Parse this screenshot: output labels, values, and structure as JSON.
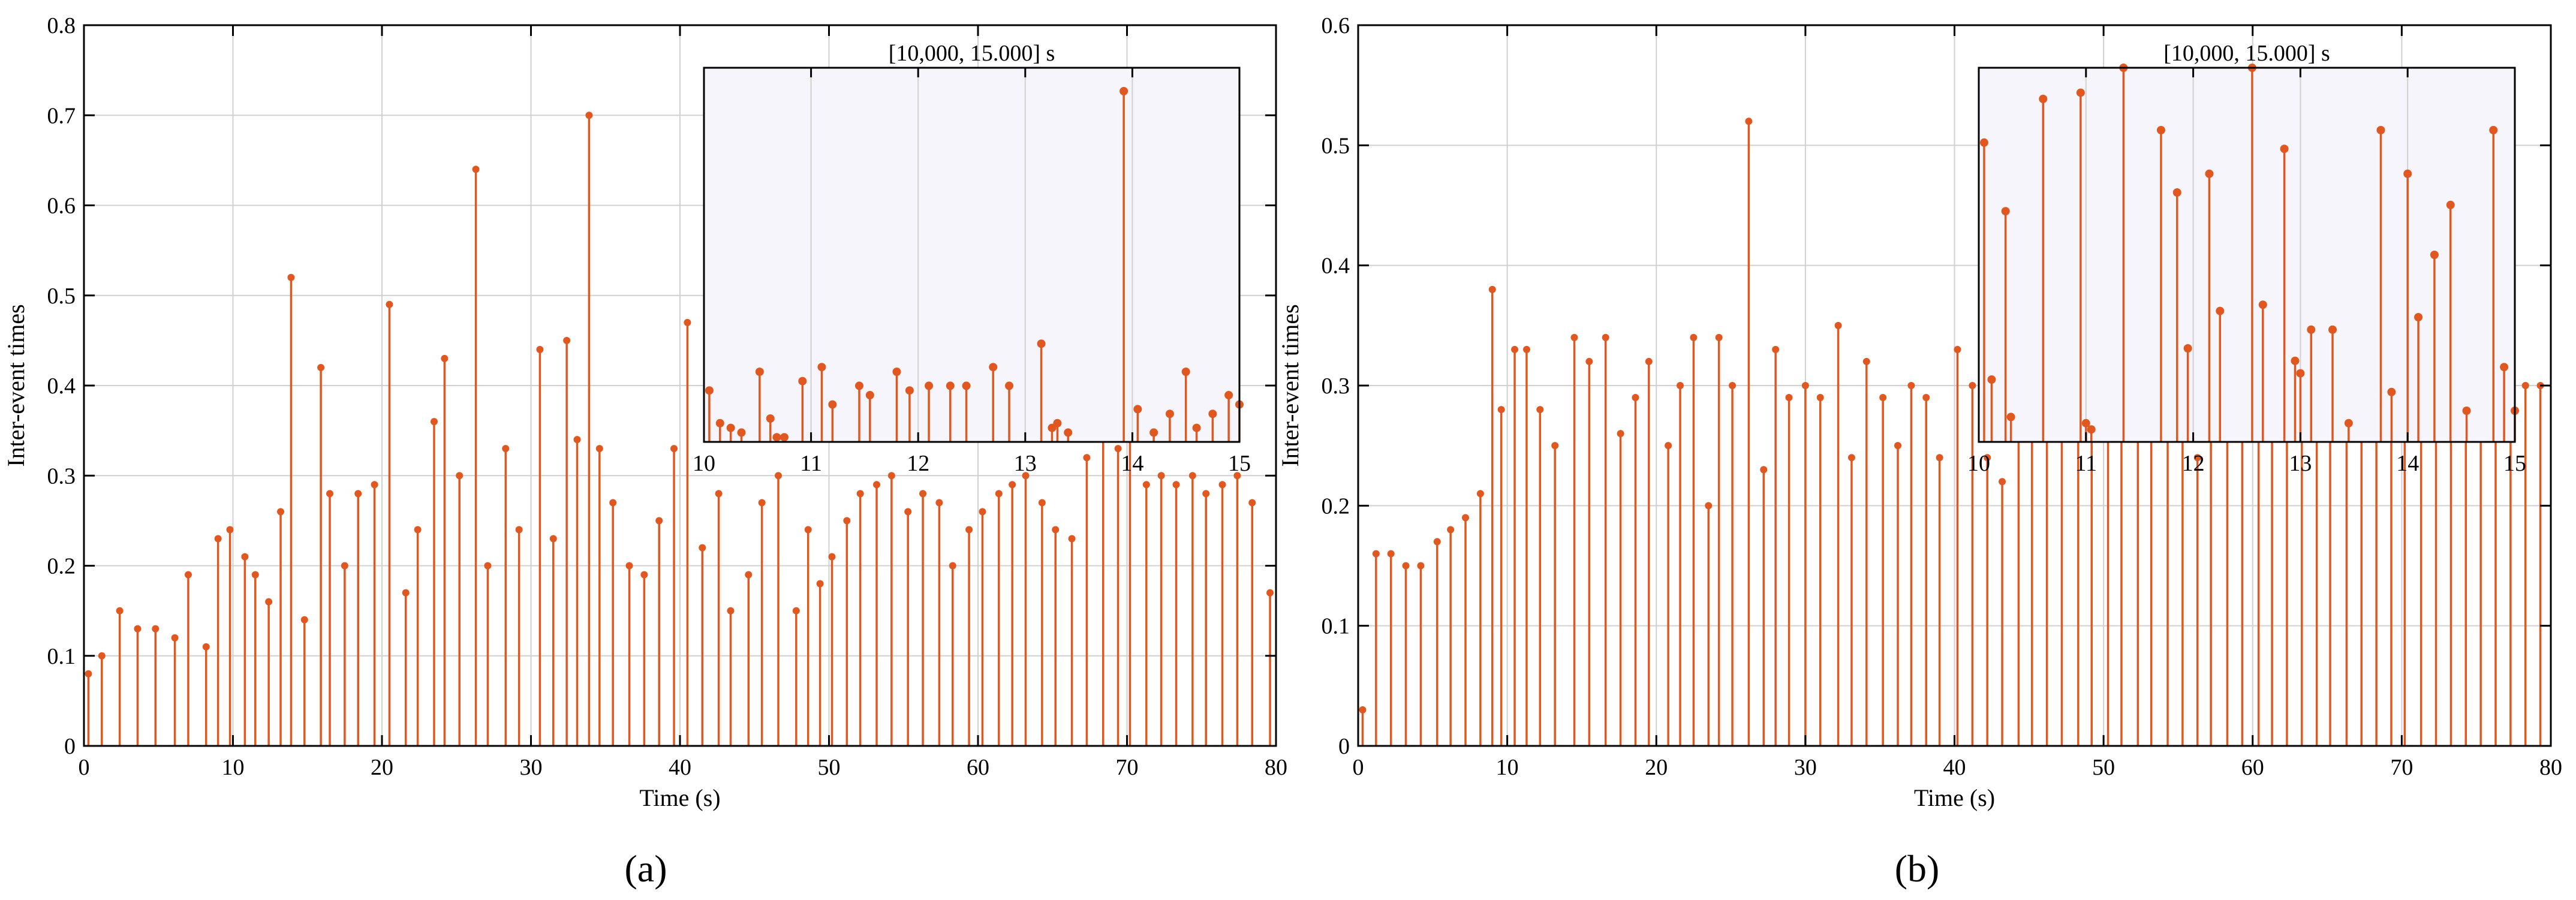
{
  "colors": {
    "series": "#E0571F",
    "inset_bg": "#F5F5FB",
    "grid": "#d0d0d0"
  },
  "chart_data": [
    {
      "type": "stem",
      "panel_label": "(a)",
      "xlabel": "Time (s)",
      "ylabel": "Inter-event times",
      "xlim": [
        0,
        80
      ],
      "ylim": [
        0,
        0.8
      ],
      "xticks": [
        0,
        10,
        20,
        30,
        40,
        50,
        60,
        70,
        80
      ],
      "yticks": [
        0,
        0.1,
        0.2,
        0.3,
        0.4,
        0.5,
        0.6,
        0.7,
        0.8
      ],
      "grid": true,
      "x": [
        0.3,
        1.2,
        2.4,
        3.6,
        4.8,
        6.1,
        7.0,
        8.2,
        9.0,
        9.8,
        10.8,
        11.5,
        12.4,
        13.2,
        13.9,
        14.8,
        15.9,
        16.5,
        17.5,
        18.4,
        19.5,
        20.5,
        21.6,
        22.4,
        23.5,
        24.2,
        25.2,
        26.3,
        27.1,
        28.3,
        29.2,
        30.6,
        31.5,
        32.4,
        33.1,
        33.9,
        34.6,
        35.5,
        36.6,
        37.6,
        38.6,
        39.6,
        40.5,
        41.5,
        42.6,
        43.4,
        44.6,
        45.5,
        46.6,
        47.8,
        48.6,
        49.4,
        50.2,
        51.2,
        52.1,
        53.2,
        54.2,
        55.3,
        56.3,
        57.4,
        58.3,
        59.4,
        60.3,
        61.4,
        62.3,
        63.2,
        64.3,
        65.2,
        66.3,
        67.3,
        68.4,
        69.4,
        70.2,
        71.3,
        72.3,
        73.3,
        74.4,
        75.3,
        76.4,
        77.4,
        78.4,
        79.6
      ],
      "values": [
        0.08,
        0.1,
        0.15,
        0.13,
        0.13,
        0.12,
        0.19,
        0.11,
        0.23,
        0.24,
        0.21,
        0.19,
        0.16,
        0.26,
        0.52,
        0.14,
        0.42,
        0.28,
        0.2,
        0.28,
        0.29,
        0.49,
        0.17,
        0.24,
        0.36,
        0.43,
        0.3,
        0.64,
        0.2,
        0.33,
        0.24,
        0.44,
        0.23,
        0.45,
        0.34,
        0.7,
        0.33,
        0.27,
        0.2,
        0.19,
        0.25,
        0.33,
        0.47,
        0.22,
        0.28,
        0.15,
        0.19,
        0.27,
        0.3,
        0.15,
        0.24,
        0.18,
        0.21,
        0.25,
        0.28,
        0.29,
        0.3,
        0.26,
        0.28,
        0.27,
        0.2,
        0.24,
        0.26,
        0.28,
        0.29,
        0.3,
        0.27,
        0.24,
        0.23,
        0.32,
        0.36,
        0.33,
        0.34,
        0.29,
        0.3,
        0.29,
        0.3,
        0.28,
        0.29,
        0.3,
        0.27,
        0.17
      ],
      "inset": {
        "title": "[10,000, 15.000] s",
        "xlim": [
          10,
          15
        ],
        "ylim": [
          0,
          0.8
        ],
        "xticks": [
          10,
          11,
          12,
          13,
          14,
          15
        ],
        "x": [
          10.05,
          10.15,
          10.25,
          10.35,
          10.52,
          10.62,
          10.68,
          10.75,
          10.92,
          11.1,
          11.2,
          11.45,
          11.55,
          11.8,
          11.92,
          12.1,
          12.3,
          12.45,
          12.7,
          12.85,
          13.15,
          13.25,
          13.3,
          13.4,
          13.92,
          14.05,
          14.2,
          14.35,
          14.5,
          14.6,
          14.75,
          14.9,
          15.0
        ],
        "values": [
          0.11,
          0.04,
          0.03,
          0.02,
          0.15,
          0.05,
          0.01,
          0.01,
          0.13,
          0.16,
          0.08,
          0.12,
          0.1,
          0.15,
          0.11,
          0.12,
          0.12,
          0.12,
          0.16,
          0.12,
          0.21,
          0.03,
          0.04,
          0.02,
          0.75,
          0.07,
          0.02,
          0.06,
          0.15,
          0.03,
          0.06,
          0.1,
          0.08
        ]
      }
    },
    {
      "type": "stem",
      "panel_label": "(b)",
      "xlabel": "Time (s)",
      "ylabel": "Inter-event times",
      "xlim": [
        0,
        80
      ],
      "ylim": [
        0,
        0.6
      ],
      "xticks": [
        0,
        10,
        20,
        30,
        40,
        50,
        60,
        70,
        80
      ],
      "yticks": [
        0,
        0.1,
        0.2,
        0.3,
        0.4,
        0.5,
        0.6
      ],
      "grid": true,
      "x": [
        0.3,
        1.2,
        2.2,
        3.2,
        4.2,
        5.3,
        6.2,
        7.2,
        8.2,
        9.0,
        9.6,
        10.5,
        11.3,
        12.2,
        13.2,
        14.5,
        15.5,
        16.6,
        17.6,
        18.6,
        19.5,
        20.8,
        21.6,
        22.5,
        23.5,
        24.2,
        25.1,
        26.2,
        27.2,
        28.0,
        28.9,
        30.0,
        31.0,
        32.2,
        33.1,
        34.1,
        35.2,
        36.2,
        37.1,
        38.1,
        39.0,
        40.2,
        41.2,
        42.2,
        43.2,
        44.3,
        45.2,
        46.2,
        47.2,
        48.3,
        49.2,
        50.3,
        51.2,
        52.3,
        53.2,
        54.3,
        55.3,
        56.3,
        57.2,
        58.3,
        59.3,
        60.4,
        61.3,
        62.3,
        63.3,
        64.3,
        65.2,
        66.3,
        67.3,
        68.3,
        69.3,
        70.2,
        71.3,
        72.3,
        73.3,
        74.3,
        75.3,
        76.3,
        77.3,
        78.3,
        79.3
      ],
      "values": [
        0.03,
        0.16,
        0.16,
        0.15,
        0.15,
        0.17,
        0.18,
        0.19,
        0.21,
        0.38,
        0.28,
        0.33,
        0.33,
        0.28,
        0.25,
        0.34,
        0.32,
        0.34,
        0.26,
        0.29,
        0.32,
        0.25,
        0.3,
        0.34,
        0.2,
        0.34,
        0.3,
        0.52,
        0.23,
        0.33,
        0.29,
        0.3,
        0.29,
        0.35,
        0.24,
        0.32,
        0.29,
        0.25,
        0.3,
        0.29,
        0.24,
        0.33,
        0.3,
        0.24,
        0.22,
        0.3,
        0.28,
        0.3,
        0.29,
        0.28,
        0.28,
        0.28,
        0.3,
        0.26,
        0.27,
        0.29,
        0.28,
        0.24,
        0.29,
        0.3,
        0.29,
        0.31,
        0.28,
        0.29,
        0.28,
        0.3,
        0.27,
        0.3,
        0.28,
        0.31,
        0.29,
        0.3,
        0.29,
        0.28,
        0.36,
        0.3,
        0.29,
        0.34,
        0.36,
        0.3,
        0.3
      ],
      "inset": {
        "title": "[10,000, 15.000] s",
        "xlim": [
          10,
          15
        ],
        "ylim": [
          0,
          0.6
        ],
        "xticks": [
          10,
          11,
          12,
          13,
          14,
          15
        ],
        "x": [
          10.05,
          10.12,
          10.25,
          10.3,
          10.6,
          10.95,
          11.0,
          11.05,
          11.35,
          11.7,
          11.85,
          11.95,
          12.15,
          12.25,
          12.55,
          12.65,
          12.85,
          12.95,
          13.0,
          13.1,
          13.3,
          13.45,
          13.75,
          13.85,
          14.0,
          14.1,
          14.25,
          14.4,
          14.55,
          14.8,
          14.9,
          15.0
        ],
        "values": [
          0.48,
          0.1,
          0.37,
          0.04,
          0.55,
          0.56,
          0.03,
          0.02,
          0.6,
          0.5,
          0.4,
          0.15,
          0.43,
          0.21,
          0.6,
          0.22,
          0.47,
          0.13,
          0.11,
          0.18,
          0.18,
          0.03,
          0.5,
          0.08,
          0.43,
          0.2,
          0.3,
          0.38,
          0.05,
          0.5,
          0.12,
          0.05
        ]
      }
    }
  ]
}
